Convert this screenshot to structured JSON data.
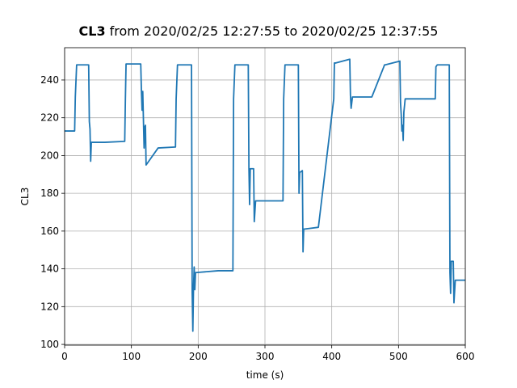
{
  "chart_data": {
    "type": "line",
    "title_variable": "CL3",
    "title": "from 2020/02/25 12:27:55 to 2020/02/25 12:37:55",
    "x_label": "time (s)",
    "y_label": "CL3",
    "xlim": [
      0,
      600
    ],
    "ylim": [
      99.6,
      257.1
    ],
    "xticks": [
      0,
      100,
      200,
      300,
      400,
      500,
      600
    ],
    "yticks": [
      100,
      120,
      140,
      160,
      180,
      200,
      220,
      240
    ],
    "grid": true,
    "series": [
      {
        "name": "CL3",
        "color": "#1f77b4",
        "x": [
          0,
          15,
          16,
          18,
          36,
          37,
          38,
          39,
          40,
          60,
          90,
          91,
          92,
          114,
          115,
          116,
          117,
          119,
          120,
          121,
          122,
          140,
          166,
          167,
          169,
          190,
          191,
          192,
          193,
          194,
          195,
          196,
          230,
          252,
          253,
          255,
          275,
          276,
          277,
          278,
          283,
          284,
          286,
          320,
          327,
          328,
          330,
          350,
          351,
          352,
          356,
          357,
          358,
          380,
          403,
          404,
          406,
          427,
          428,
          429,
          431,
          433,
          460,
          478,
          479,
          480,
          502,
          503,
          504,
          505,
          506,
          507,
          508,
          510,
          530,
          555,
          556,
          558,
          576,
          577,
          578,
          579,
          582,
          583,
          585,
          600
        ],
        "values": [
          213,
          213,
          231,
          248,
          248,
          218,
          214,
          197,
          207,
          207,
          207.5,
          230,
          248.5,
          248.5,
          234,
          224,
          234,
          204,
          215,
          216,
          195,
          204,
          204.5,
          230,
          248,
          248,
          128,
          107,
          130,
          141,
          129,
          138,
          139,
          139,
          230,
          248,
          248,
          193,
          174,
          193,
          193,
          165,
          176,
          176,
          176,
          230,
          248,
          248,
          180,
          191,
          192,
          149,
          161,
          162,
          230,
          249,
          249,
          251,
          232,
          225,
          231,
          231,
          231,
          247,
          248,
          248,
          250,
          228,
          222,
          213,
          216,
          208,
          223,
          230,
          230,
          230,
          247,
          248,
          248,
          138,
          127,
          144,
          144,
          122,
          134,
          134
        ]
      }
    ]
  }
}
